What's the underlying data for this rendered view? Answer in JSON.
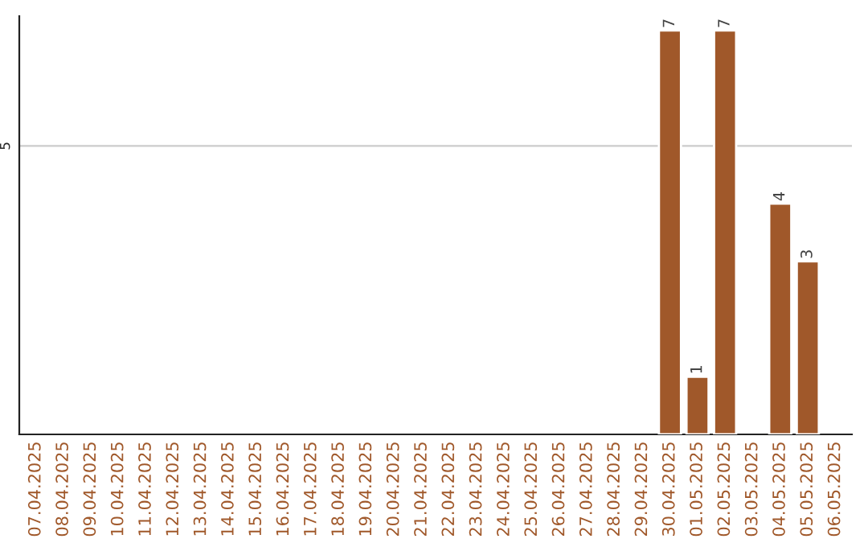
{
  "chart_data": {
    "type": "bar",
    "categories": [
      "07.04.2025",
      "08.04.2025",
      "09.04.2025",
      "10.04.2025",
      "11.04.2025",
      "12.04.2025",
      "13.04.2025",
      "14.04.2025",
      "15.04.2025",
      "16.04.2025",
      "17.04.2025",
      "18.04.2025",
      "19.04.2025",
      "20.04.2025",
      "21.04.2025",
      "22.04.2025",
      "23.04.2025",
      "24.04.2025",
      "25.04.2025",
      "26.04.2025",
      "27.04.2025",
      "28.04.2025",
      "29.04.2025",
      "30.04.2025",
      "01.05.2025",
      "02.05.2025",
      "03.05.2025",
      "04.05.2025",
      "05.05.2025",
      "06.05.2025"
    ],
    "values": [
      null,
      null,
      null,
      null,
      null,
      null,
      null,
      null,
      null,
      null,
      null,
      null,
      null,
      null,
      null,
      null,
      null,
      null,
      null,
      null,
      null,
      null,
      null,
      7,
      1,
      7,
      null,
      4,
      3,
      null
    ],
    "color": "#a0582a",
    "ylim": [
      0,
      7.25
    ],
    "yticks": [
      5
    ],
    "grid": "y",
    "data_labels": true
  }
}
